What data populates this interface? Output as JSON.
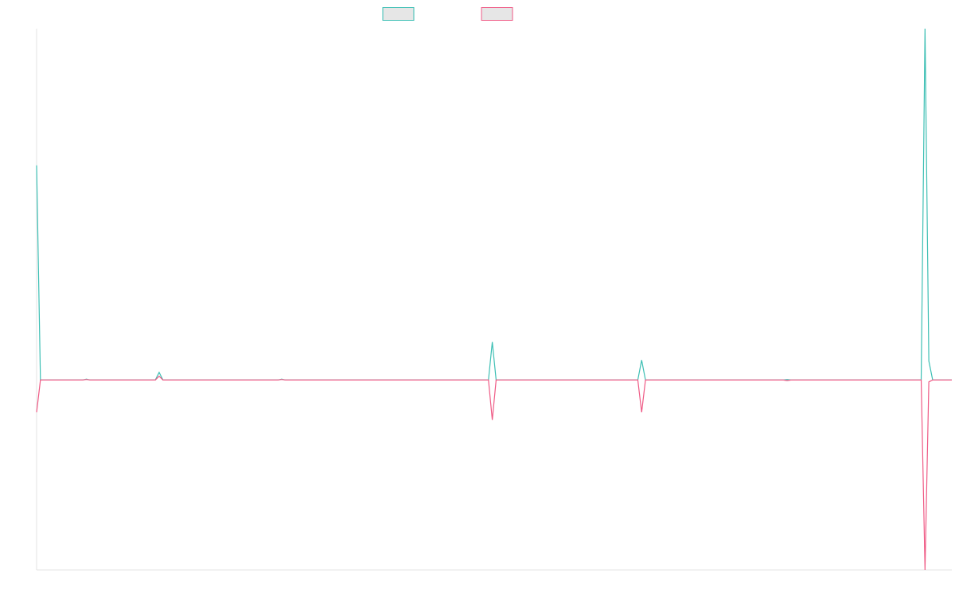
{
  "chart_data": {
    "type": "line",
    "title": "",
    "xlabel": "",
    "ylabel": "",
    "grid": false,
    "legend_position": "top",
    "x": [
      0,
      1,
      2,
      3,
      4,
      5,
      6,
      7,
      8,
      9,
      10,
      11,
      12,
      13,
      14,
      15,
      16,
      17,
      18,
      19,
      20,
      21,
      22,
      23,
      24,
      25,
      26,
      27,
      28,
      29,
      30,
      31,
      32,
      33,
      34,
      35,
      36,
      37,
      38,
      39,
      40,
      41,
      42,
      43,
      44,
      45,
      46,
      47,
      48,
      49,
      50,
      51,
      52,
      53,
      54,
      55,
      56,
      57,
      58,
      59,
      60,
      61,
      62,
      63,
      64,
      65,
      66,
      67,
      68,
      69,
      70,
      71,
      72,
      73,
      74,
      75,
      76,
      77,
      78,
      79,
      80,
      81,
      82,
      83,
      84,
      85,
      86,
      87,
      88,
      89,
      90,
      91,
      92,
      93,
      94,
      95,
      96,
      97,
      98,
      99,
      100,
      101,
      102,
      103,
      104,
      105,
      106,
      107,
      108,
      109,
      110,
      111,
      112,
      113,
      114,
      115,
      116,
      117,
      118,
      119,
      120,
      121,
      122,
      123,
      124,
      125,
      126,
      127,
      128,
      129,
      130,
      131,
      132,
      133,
      134,
      135,
      136,
      137,
      138,
      139,
      140,
      141,
      142,
      143,
      144,
      145,
      146,
      147,
      148,
      149,
      150,
      151,
      152,
      153,
      154,
      155,
      156,
      157,
      158,
      159,
      160,
      161,
      162,
      163,
      164,
      165,
      166,
      167,
      168,
      169,
      170,
      171,
      172,
      173,
      174,
      175,
      176,
      177,
      178,
      179,
      180,
      181,
      182,
      183,
      184,
      185,
      186,
      187,
      188,
      189,
      190,
      191,
      192,
      193,
      194,
      195,
      196,
      197,
      198,
      199,
      200,
      201,
      202,
      203,
      204,
      205,
      206,
      207,
      208,
      209,
      210,
      211,
      212,
      213,
      214,
      215,
      216,
      217,
      218,
      219,
      220,
      221,
      222,
      223,
      224,
      225,
      226,
      227,
      228,
      229,
      230,
      231,
      232,
      233,
      234,
      235,
      236,
      237,
      238,
      239
    ],
    "ylim": [
      -100,
      185
    ],
    "series": [
      {
        "color": "#3dbfb4",
        "fill": "#e6e6e6",
        "spikes": {
          "0": 113,
          "13": 0.5,
          "32": 4,
          "64": 0.5,
          "119": 20,
          "158": 10.5,
          "196": 0.3,
          "232": 185,
          "233": 10
        }
      },
      {
        "color": "#ef5a85",
        "fill": "#e6e6e6",
        "spikes": {
          "0": -17,
          "13": 0.3,
          "32": 2,
          "64": 0.3,
          "119": -21,
          "158": -17,
          "196": -0.3,
          "232": -100,
          "233": -1
        }
      }
    ]
  }
}
